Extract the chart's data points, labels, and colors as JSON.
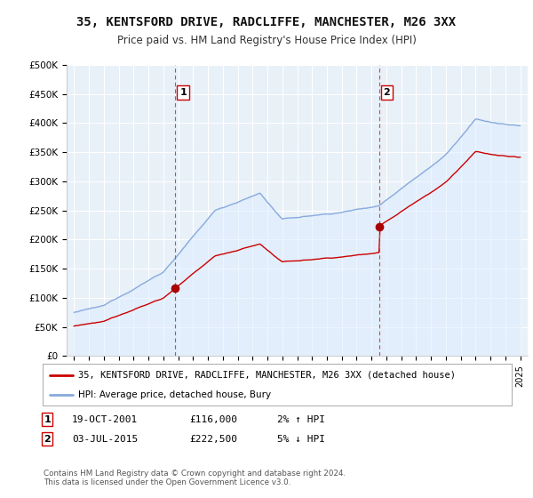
{
  "title": "35, KENTSFORD DRIVE, RADCLIFFE, MANCHESTER, M26 3XX",
  "subtitle": "Price paid vs. HM Land Registry's House Price Index (HPI)",
  "ylabel_ticks": [
    "£0",
    "£50K",
    "£100K",
    "£150K",
    "£200K",
    "£250K",
    "£300K",
    "£350K",
    "£400K",
    "£450K",
    "£500K"
  ],
  "ytick_values": [
    0,
    50000,
    100000,
    150000,
    200000,
    250000,
    300000,
    350000,
    400000,
    450000,
    500000
  ],
  "ylim": [
    0,
    500000
  ],
  "sale1": {
    "date_num": 2001.8,
    "price": 116000,
    "label": "1"
  },
  "sale2": {
    "date_num": 2015.5,
    "price": 222500,
    "label": "2"
  },
  "vline1_x": 2001.8,
  "vline2_x": 2015.5,
  "legend_house_label": "35, KENTSFORD DRIVE, RADCLIFFE, MANCHESTER, M26 3XX (detached house)",
  "legend_hpi_label": "HPI: Average price, detached house, Bury",
  "table_row1": [
    "1",
    "19-OCT-2001",
    "£116,000",
    "2% ↑ HPI"
  ],
  "table_row2": [
    "2",
    "03-JUL-2015",
    "£222,500",
    "5% ↓ HPI"
  ],
  "copyright": "Contains HM Land Registry data © Crown copyright and database right 2024.\nThis data is licensed under the Open Government Licence v3.0.",
  "house_color": "#cc0000",
  "hpi_color": "#88aadd",
  "hpi_fill_color": "#ddeeff",
  "vline_color": "#dd4444",
  "marker_color": "#aa0000",
  "background_color": "#ffffff",
  "plot_bg_color": "#e8f0f8",
  "xlim_start": 1994.5,
  "xlim_end": 2025.5
}
